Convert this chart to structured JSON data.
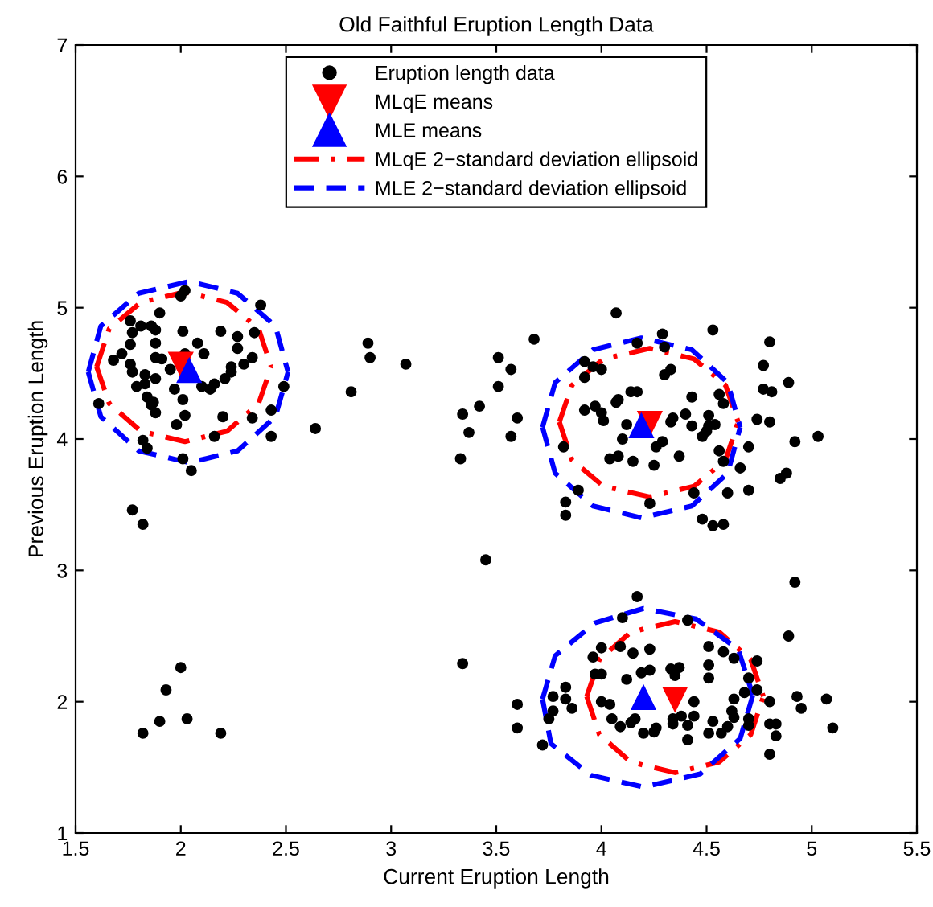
{
  "chart_data": {
    "type": "scatter",
    "title": "Old Faithful Eruption Length Data",
    "xlabel": "Current Eruption Length",
    "ylabel": "Previous Eruption Length",
    "xlim": [
      1.5,
      5.5
    ],
    "xticks": [
      1.5,
      2,
      2.5,
      3,
      3.5,
      4,
      4.5,
      5,
      5.5
    ],
    "ylim": [
      1,
      7
    ],
    "yticks": [
      1,
      2,
      3,
      4,
      5,
      6,
      7
    ],
    "grid": false,
    "legend": "top",
    "series": [
      {
        "name": "Eruption length data",
        "type": "scatter",
        "marker": "circle",
        "color": "#000000",
        "x": [
          2.02,
          2.0,
          2.38,
          1.9,
          1.76,
          1.86,
          1.81,
          1.88,
          1.77,
          2.01,
          2.19,
          2.27,
          2.35,
          1.76,
          1.88,
          2.08,
          2.27,
          2.11,
          2.02,
          1.68,
          1.72,
          1.88,
          1.91,
          2.34,
          2.3,
          2.24,
          1.76,
          1.77,
          1.95,
          1.83,
          1.88,
          2.24,
          2.21,
          1.83,
          1.79,
          1.97,
          2.1,
          2.14,
          2.16,
          2.49,
          2.01,
          1.84,
          1.87,
          1.86,
          1.88,
          1.61,
          2.02,
          2.2,
          2.43,
          2.34,
          1.98,
          2.16,
          1.82,
          1.84,
          2.01,
          2.05,
          2.43,
          2.89,
          2.9,
          2.81,
          2.64,
          1.77,
          1.82,
          2.0,
          1.93,
          1.9,
          2.03,
          1.82,
          2.19,
          3.07,
          3.51,
          3.57,
          3.51,
          3.42,
          3.34,
          3.6,
          3.37,
          3.57,
          3.33,
          3.45,
          3.34,
          4.07,
          3.68,
          4.29,
          4.53,
          4.8,
          4.17,
          4.3,
          3.92,
          3.96,
          4.0,
          3.92,
          4.33,
          4.3,
          4.77,
          4.77,
          4.81,
          4.89,
          4.14,
          4.17,
          4.56,
          4.43,
          4.58,
          4.07,
          4.08,
          3.97,
          3.92,
          4.0,
          4.01,
          4.34,
          4.33,
          4.4,
          4.51,
          4.54,
          4.51,
          4.5,
          4.48,
          4.43,
          4.74,
          4.8,
          4.12,
          4.1,
          4.29,
          4.26,
          5.03,
          4.92,
          4.7,
          3.82,
          4.56,
          4.58,
          4.37,
          4.08,
          4.04,
          4.15,
          4.25,
          4.66,
          4.88,
          4.85,
          4.44,
          4.6,
          4.7,
          3.89,
          3.83,
          3.83,
          4.23,
          4.48,
          4.53,
          4.58,
          4.17,
          4.1,
          4.41,
          4.89,
          4.0,
          3.96,
          4.09,
          4.15,
          4.23,
          4.51,
          4.58,
          4.63,
          4.74,
          3.97,
          4.0,
          4.12,
          4.19,
          4.23,
          4.33,
          4.37,
          4.35,
          4.51,
          4.51,
          4.7,
          3.77,
          3.83,
          3.83,
          3.86,
          3.77,
          3.75,
          3.72,
          3.6,
          3.6,
          4.0,
          4.04,
          4.16,
          4.14,
          4.05,
          4.09,
          4.26,
          4.2,
          4.25,
          4.34,
          4.34,
          4.38,
          4.41,
          4.44,
          4.44,
          4.41,
          4.51,
          4.53,
          4.57,
          4.6,
          4.63,
          4.62,
          4.63,
          4.7,
          4.7,
          4.68,
          4.74,
          4.8,
          4.8,
          4.83,
          4.83,
          4.8,
          4.93,
          4.95,
          5.07,
          5.1,
          4.92
        ],
        "values": [
          5.13,
          5.09,
          5.02,
          4.96,
          4.9,
          4.86,
          4.86,
          4.83,
          4.81,
          4.82,
          4.82,
          4.78,
          4.81,
          4.72,
          4.73,
          4.73,
          4.69,
          4.65,
          4.65,
          4.6,
          4.65,
          4.62,
          4.61,
          4.62,
          4.57,
          4.55,
          4.57,
          4.51,
          4.53,
          4.49,
          4.46,
          4.51,
          4.46,
          4.42,
          4.4,
          4.38,
          4.4,
          4.38,
          4.42,
          4.4,
          4.3,
          4.32,
          4.28,
          4.26,
          4.2,
          4.27,
          4.18,
          4.17,
          4.22,
          4.16,
          4.11,
          4.02,
          3.99,
          3.93,
          3.85,
          3.76,
          4.02,
          4.73,
          4.62,
          4.36,
          4.08,
          3.46,
          3.35,
          2.26,
          2.09,
          1.85,
          1.87,
          1.76,
          1.76,
          4.57,
          4.62,
          4.53,
          4.4,
          4.25,
          4.19,
          4.16,
          4.05,
          4.02,
          3.85,
          3.08,
          2.29,
          4.96,
          4.76,
          4.8,
          4.83,
          4.74,
          4.73,
          4.7,
          4.59,
          4.55,
          4.53,
          4.47,
          4.53,
          4.49,
          4.56,
          4.38,
          4.36,
          4.43,
          4.36,
          4.36,
          4.34,
          4.32,
          4.27,
          4.28,
          4.3,
          4.25,
          4.22,
          4.2,
          4.14,
          4.16,
          4.13,
          4.19,
          4.18,
          4.11,
          4.1,
          4.06,
          4.02,
          4.1,
          4.15,
          4.13,
          4.11,
          4.0,
          3.98,
          3.94,
          4.02,
          3.98,
          3.94,
          3.94,
          3.91,
          3.83,
          3.87,
          3.87,
          3.85,
          3.83,
          3.8,
          3.78,
          3.74,
          3.7,
          3.59,
          3.59,
          3.61,
          3.61,
          3.52,
          3.42,
          3.51,
          3.39,
          3.34,
          3.35,
          2.8,
          2.64,
          2.62,
          2.5,
          2.41,
          2.34,
          2.42,
          2.37,
          2.4,
          2.42,
          2.38,
          2.33,
          2.31,
          2.21,
          2.21,
          2.17,
          2.22,
          2.24,
          2.25,
          2.26,
          2.2,
          2.28,
          2.18,
          2.18,
          2.04,
          2.11,
          2.02,
          1.95,
          1.93,
          1.87,
          1.67,
          1.98,
          1.8,
          2.0,
          1.98,
          1.87,
          1.84,
          1.87,
          1.81,
          1.8,
          1.76,
          1.77,
          1.87,
          1.83,
          1.89,
          1.82,
          1.89,
          2.0,
          1.71,
          1.76,
          1.85,
          1.76,
          1.81,
          2.02,
          1.93,
          1.88,
          1.87,
          1.82,
          2.07,
          2.09,
          2.0,
          1.83,
          1.83,
          1.74,
          1.6,
          2.04,
          1.95,
          2.02,
          1.8,
          2.91
        ]
      },
      {
        "name": "MLqE means",
        "type": "scatter",
        "marker": "triangle_down",
        "color": "#ff0000",
        "x": [
          2.0,
          4.23,
          4.35
        ],
        "values": [
          4.57,
          4.12,
          2.02
        ]
      },
      {
        "name": "MLE means",
        "type": "scatter",
        "marker": "triangle",
        "color": "#0000ff",
        "x": [
          2.04,
          4.19,
          4.2
        ],
        "values": [
          4.52,
          4.1,
          2.03
        ]
      },
      {
        "name": "MLqE 2−standard deviation ellipsoid",
        "type": "line",
        "line_style": "dashdot",
        "color": "#ff0000",
        "x": [
          1.6,
          1.66,
          1.81,
          2.02,
          2.22,
          2.37,
          2.43
        ],
        "values": [
          4.55,
          4.84,
          5.04,
          5.12,
          5.04,
          4.84,
          4.55
        ]
      },
      {
        "type": "line",
        "line_style": "dashdot",
        "color": "#ff0000",
        "x": [
          1.6,
          1.66,
          1.81,
          2.02,
          2.22,
          2.37,
          2.43
        ],
        "values": [
          4.55,
          4.27,
          4.06,
          3.98,
          4.06,
          4.27,
          4.55
        ]
      },
      {
        "type": "line",
        "line_style": "dashdot",
        "color": "#ff0000",
        "x": [
          3.8,
          3.86,
          4.01,
          4.23,
          4.44,
          4.59,
          4.65
        ],
        "values": [
          4.13,
          4.41,
          4.61,
          4.69,
          4.61,
          4.41,
          4.13
        ]
      },
      {
        "type": "line",
        "line_style": "dashdot",
        "color": "#ff0000",
        "x": [
          3.8,
          3.86,
          4.01,
          4.23,
          4.44,
          4.59,
          4.65
        ],
        "values": [
          4.13,
          3.84,
          3.64,
          3.56,
          3.64,
          3.84,
          4.13
        ]
      },
      {
        "type": "line",
        "line_style": "dashdot",
        "color": "#ff0000",
        "x": [
          3.93,
          3.99,
          4.14,
          4.35,
          4.56,
          4.71,
          4.77
        ],
        "values": [
          2.04,
          2.32,
          2.53,
          2.61,
          2.53,
          2.32,
          2.04
        ]
      },
      {
        "type": "line",
        "line_style": "dashdot",
        "color": "#ff0000",
        "x": [
          3.93,
          3.99,
          4.14,
          4.35,
          4.56,
          4.71,
          4.77
        ],
        "values": [
          2.04,
          1.75,
          1.54,
          1.46,
          1.54,
          1.75,
          2.04
        ]
      },
      {
        "name": "MLE 2−standard deviation ellipsoid",
        "type": "line",
        "line_style": "dashed",
        "color": "#0000ff",
        "x": [
          1.56,
          1.62,
          1.8,
          2.04,
          2.27,
          2.45,
          2.51
        ],
        "values": [
          4.51,
          4.86,
          5.11,
          5.2,
          5.11,
          4.86,
          4.51
        ]
      },
      {
        "type": "line",
        "line_style": "dashed",
        "color": "#0000ff",
        "x": [
          1.56,
          1.62,
          1.8,
          2.04,
          2.27,
          2.45,
          2.51
        ],
        "values": [
          4.51,
          4.17,
          3.91,
          3.82,
          3.91,
          4.17,
          4.51
        ]
      },
      {
        "type": "line",
        "line_style": "dashed",
        "color": "#0000ff",
        "x": [
          3.72,
          3.78,
          3.96,
          4.19,
          4.43,
          4.6,
          4.66
        ],
        "values": [
          4.09,
          4.43,
          4.68,
          4.77,
          4.68,
          4.43,
          4.09
        ]
      },
      {
        "type": "line",
        "line_style": "dashed",
        "color": "#0000ff",
        "x": [
          3.72,
          3.78,
          3.96,
          4.19,
          4.43,
          4.6,
          4.66
        ],
        "values": [
          4.09,
          3.74,
          3.49,
          3.4,
          3.49,
          3.74,
          4.09
        ]
      },
      {
        "type": "line",
        "line_style": "dashed",
        "color": "#0000ff",
        "x": [
          3.72,
          3.78,
          3.97,
          4.2,
          4.45,
          4.65,
          4.72
        ],
        "values": [
          2.02,
          2.35,
          2.6,
          2.71,
          2.63,
          2.4,
          2.05
        ]
      },
      {
        "type": "line",
        "line_style": "dashed",
        "color": "#0000ff",
        "x": [
          3.72,
          3.76,
          3.95,
          4.2,
          4.47,
          4.66,
          4.72
        ],
        "values": [
          2.02,
          1.68,
          1.44,
          1.35,
          1.45,
          1.72,
          2.05
        ]
      }
    ]
  }
}
